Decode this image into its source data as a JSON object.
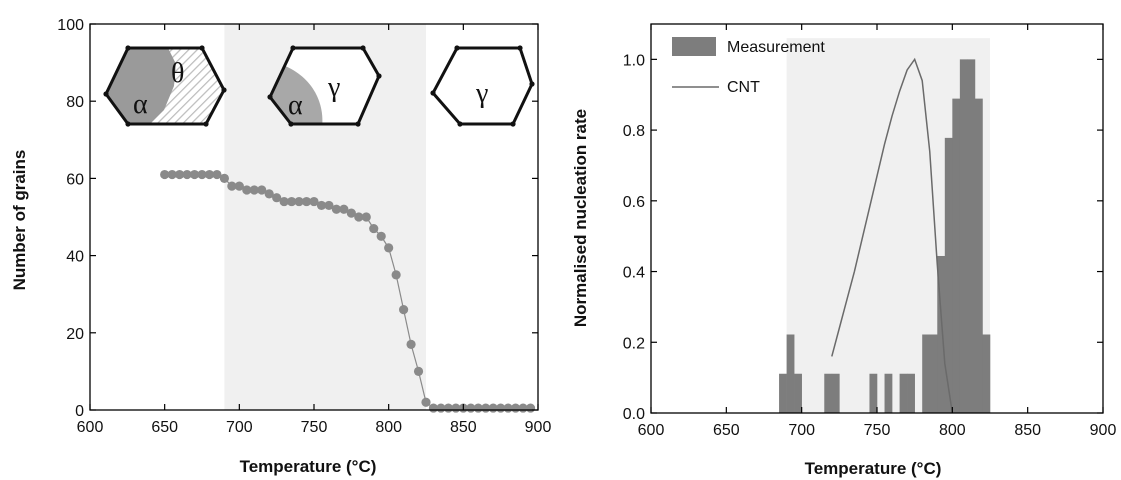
{
  "chart_data": [
    {
      "type": "scatter",
      "xlabel": "Temperature (°C)",
      "ylabel": "Number of grains",
      "xlim": [
        600,
        900
      ],
      "ylim": [
        0,
        100
      ],
      "xticks": [
        600,
        650,
        700,
        750,
        800,
        850,
        900
      ],
      "yticks": [
        0,
        20,
        40,
        60,
        80,
        100
      ],
      "shaded_region": [
        690,
        825
      ],
      "phase_labels": [
        {
          "region": "below 690",
          "greek": [
            "α",
            "θ"
          ]
        },
        {
          "region": "690-825",
          "greek": [
            "α",
            "γ"
          ]
        },
        {
          "region": "above 825",
          "greek": [
            "γ"
          ]
        }
      ],
      "series": [
        {
          "x": [
            650,
            655,
            660,
            665,
            670,
            675,
            680,
            685,
            690,
            695,
            700,
            705,
            710,
            715,
            720,
            725,
            730,
            735,
            740,
            745,
            750,
            755,
            760,
            765,
            770,
            775,
            780,
            785,
            790,
            795,
            800,
            805,
            810,
            815,
            820,
            825,
            830,
            835,
            840,
            845,
            850,
            855,
            860,
            865,
            870,
            875,
            880,
            885,
            890,
            895
          ],
          "y": [
            61,
            61,
            61,
            61,
            61,
            61,
            61,
            61,
            60,
            58,
            58,
            57,
            57,
            57,
            56,
            55,
            54,
            54,
            54,
            54,
            54,
            53,
            53,
            52,
            52,
            51,
            50,
            50,
            47,
            45,
            42,
            35,
            26,
            17,
            10,
            2,
            0.5,
            0.5,
            0.5,
            0.5,
            0.5,
            0.5,
            0.5,
            0.5,
            0.5,
            0.5,
            0.5,
            0.5,
            0.5,
            0.5
          ]
        }
      ],
      "colors": {
        "marker": "#8a8a8a",
        "line": "#8a8a8a",
        "shade": "#f0f0f0"
      }
    },
    {
      "type": "bar",
      "xlabel": "Temperature (°C)",
      "ylabel": "Normalised nucleation rate",
      "xlim": [
        600,
        900
      ],
      "ylim": [
        0,
        1.1
      ],
      "xticks": [
        600,
        650,
        700,
        750,
        800,
        850,
        900
      ],
      "yticks": [
        0.0,
        0.2,
        0.4,
        0.6,
        0.8,
        1.0
      ],
      "ytick_labels": [
        "0.0",
        "0.2",
        "0.4",
        "0.6",
        "0.8",
        "1.0"
      ],
      "shaded_region": [
        690,
        825
      ],
      "bin_width": 5,
      "series": [
        {
          "name": "Measurement",
          "bins_start": [
            685,
            690,
            695,
            715,
            720,
            745,
            755,
            765,
            770,
            780,
            785,
            790,
            795,
            800,
            805,
            810,
            815,
            820
          ],
          "values": [
            0.111,
            0.222,
            0.111,
            0.111,
            0.111,
            0.111,
            0.111,
            0.111,
            0.111,
            0.222,
            0.222,
            0.444,
            0.778,
            0.889,
            1.0,
            1.0,
            0.889,
            0.222
          ]
        },
        {
          "name": "CNT",
          "x": [
            720,
            725,
            730,
            735,
            740,
            745,
            750,
            755,
            760,
            765,
            770,
            775,
            780,
            785,
            790,
            795,
            800
          ],
          "y": [
            0.16,
            0.24,
            0.32,
            0.4,
            0.49,
            0.58,
            0.67,
            0.76,
            0.84,
            0.91,
            0.97,
            1.0,
            0.94,
            0.74,
            0.42,
            0.14,
            0.0
          ]
        }
      ],
      "legend": {
        "position": "top-left",
        "entries": [
          "Measurement",
          "CNT"
        ]
      },
      "colors": {
        "bar": "#7d7d7d",
        "line": "#6a6a6a",
        "shade": "#f0f0f0"
      }
    }
  ]
}
